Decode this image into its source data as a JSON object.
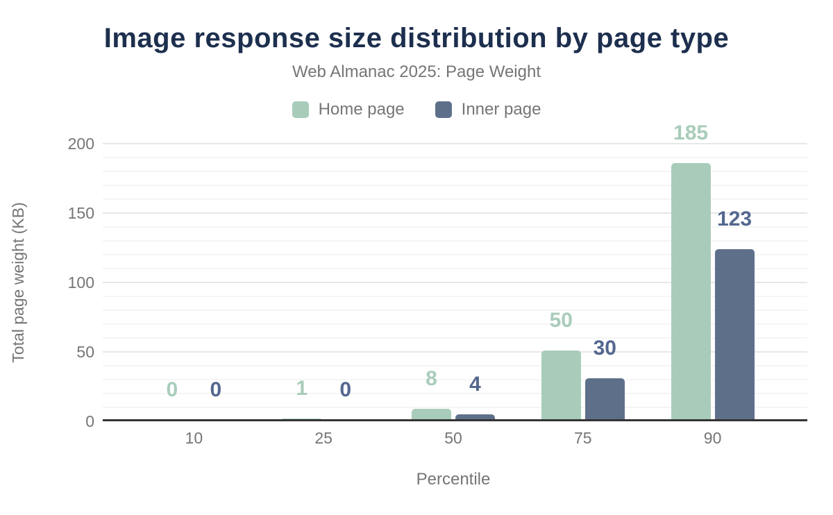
{
  "palette": {
    "title_color": "#1d2f4e",
    "muted_text_color": "#757575",
    "axis_line_color": "#333333",
    "major_gridline_color": "#e7e7e7",
    "minor_gridline_color": "#f5f5f5"
  },
  "chart_data": {
    "type": "bar",
    "title": "Image response size distribution by page type",
    "subtitle": "Web Almanac 2025: Page Weight",
    "xlabel": "Percentile",
    "ylabel": "Total page weight (KB)",
    "categories": [
      "10",
      "25",
      "50",
      "75",
      "90"
    ],
    "series": [
      {
        "name": "Home page",
        "color": "#a9ccba",
        "label_color": "#a9ccba",
        "values": [
          0,
          1,
          8,
          50,
          185
        ]
      },
      {
        "name": "Inner page",
        "color": "#5e7089",
        "label_color": "#54678f",
        "values": [
          0,
          0,
          4,
          30,
          123
        ]
      }
    ],
    "ylim": [
      0,
      200
    ],
    "yticks": [
      0,
      50,
      100,
      150,
      200
    ],
    "minor_grid_step": 10,
    "major_grid_step": 50,
    "grid": true,
    "legend_position": "top",
    "data_labels": true
  }
}
